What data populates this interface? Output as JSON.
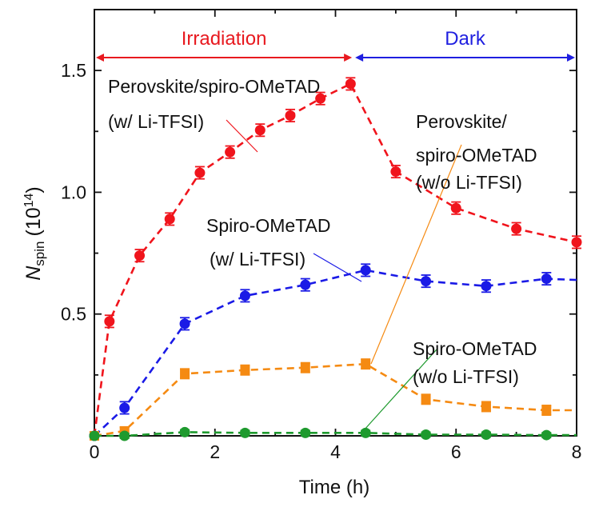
{
  "chart_data": {
    "type": "line",
    "xlabel": "Time (h)",
    "ylabel_main": "N",
    "ylabel_sub": "spin",
    "ylabel_unit": "(10",
    "ylabel_exp": "14",
    "ylabel_close": ")",
    "xlim": [
      0,
      8
    ],
    "ylim": [
      0,
      1.75
    ],
    "xticks": [
      0,
      2,
      4,
      6,
      8
    ],
    "xtick_labels": [
      "0",
      "2",
      "4",
      "6",
      "8"
    ],
    "yticks": [
      0.5,
      1.0,
      1.5
    ],
    "ytick_labels": [
      "0.5",
      "1.0",
      "1.5"
    ],
    "phases": [
      {
        "label": "Irradiation",
        "x_range": [
          0,
          4.3
        ],
        "color": "#e8191f"
      },
      {
        "label": "Dark",
        "x_range": [
          4.3,
          8
        ],
        "color": "#1f1fe0"
      }
    ],
    "series": [
      {
        "color": "#f0141c",
        "marker": "circle",
        "x": [
          0,
          0.25,
          0.75,
          1.25,
          1.75,
          2.25,
          2.75,
          3.25,
          3.75,
          4.25,
          5.0,
          6.0,
          7.0,
          8.0
        ],
        "y": [
          0.0,
          0.47,
          0.74,
          0.89,
          1.08,
          1.165,
          1.255,
          1.315,
          1.385,
          1.445,
          1.085,
          0.935,
          0.85,
          0.795
        ],
        "err": [
          0.01,
          0.025,
          0.025,
          0.025,
          0.025,
          0.025,
          0.025,
          0.025,
          0.025,
          0.025,
          0.025,
          0.025,
          0.025,
          0.025
        ],
        "labels": [
          "Perovskite/spiro-OMeTAD",
          "(w/ Li-TFSI)"
        ]
      },
      {
        "color": "#1a1ae6",
        "marker": "circle",
        "x": [
          0,
          0.5,
          1.5,
          2.5,
          3.5,
          4.5,
          5.5,
          6.5,
          7.5,
          8.0
        ],
        "y": [
          0.0,
          0.115,
          0.46,
          0.575,
          0.62,
          0.68,
          0.635,
          0.615,
          0.645,
          0.64
        ],
        "err": [
          0.01,
          0.025,
          0.025,
          0.025,
          0.025,
          0.025,
          0.025,
          0.025,
          0.025,
          0.0
        ],
        "labels": [
          "Spiro-OMeTAD",
          "(w/ Li-TFSI)"
        ]
      },
      {
        "color": "#f58a12",
        "marker": "square",
        "x": [
          0,
          0.5,
          1.5,
          2.5,
          3.5,
          4.5,
          5.5,
          6.5,
          7.5,
          8.0
        ],
        "y": [
          0.0,
          0.02,
          0.255,
          0.27,
          0.28,
          0.295,
          0.15,
          0.12,
          0.105,
          0.105
        ],
        "err": [
          0.01,
          0.015,
          0.02,
          0.02,
          0.02,
          0.02,
          0.02,
          0.02,
          0.02,
          0.0
        ],
        "labels": [
          "Perovskite/",
          "spiro-OMeTAD",
          "(w/o Li-TFSI)"
        ]
      },
      {
        "color": "#1e9a2e",
        "marker": "circle",
        "x": [
          0,
          0.5,
          1.5,
          2.5,
          3.5,
          4.5,
          5.5,
          6.5,
          7.5,
          8.0
        ],
        "y": [
          0.0,
          0.0,
          0.015,
          0.012,
          0.012,
          0.012,
          0.005,
          0.005,
          0.003,
          0.003
        ],
        "err": [
          0.005,
          0.01,
          0.01,
          0.01,
          0.01,
          0.01,
          0.01,
          0.01,
          0.01,
          0.0
        ],
        "labels": [
          "Spiro-OMeTAD",
          "(w/o Li-TFSI)"
        ]
      }
    ]
  }
}
